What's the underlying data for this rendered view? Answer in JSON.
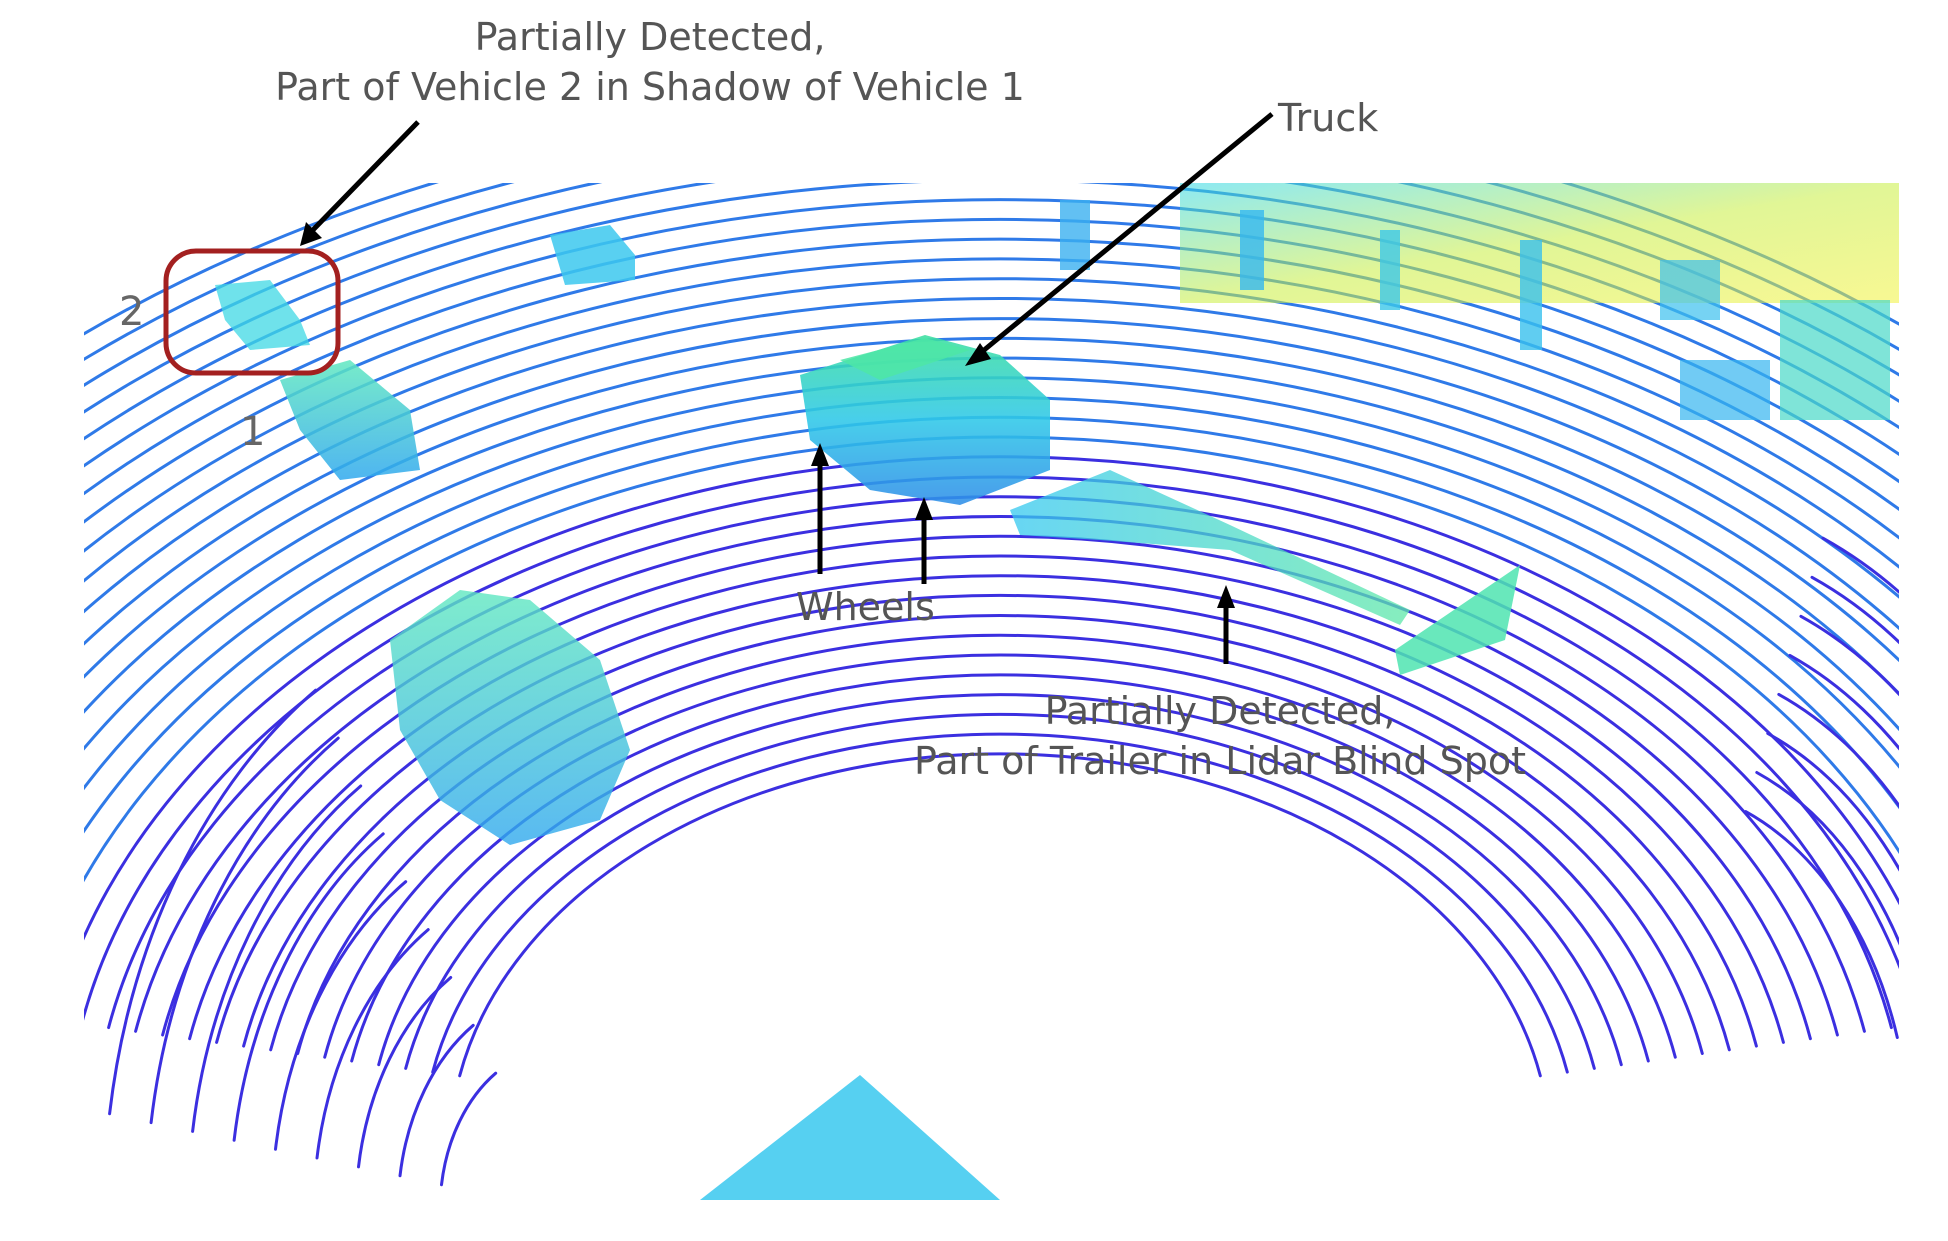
{
  "annotations": {
    "vehicle2_callout": {
      "line1": "Partially Detected,",
      "line2": "Part of Vehicle 2 in Shadow of Vehicle 1"
    },
    "truck": "Truck",
    "wheels": "Wheels",
    "trailer_callout": {
      "line1": "Partially Detected,",
      "line2": "Part of Trailer in Lidar Blind Spot"
    },
    "vehicle_1_number": "1",
    "vehicle_2_number": "2"
  },
  "colors": {
    "background": "#ffffff",
    "lidar_near": "#3b2fe0",
    "lidar_mid": "#2f7ae8",
    "lidar_object": "#2fd8e8",
    "lidar_high": "#f2f23a",
    "highlight_box": "#a32020",
    "arrow": "#000000",
    "text": "#555555"
  }
}
